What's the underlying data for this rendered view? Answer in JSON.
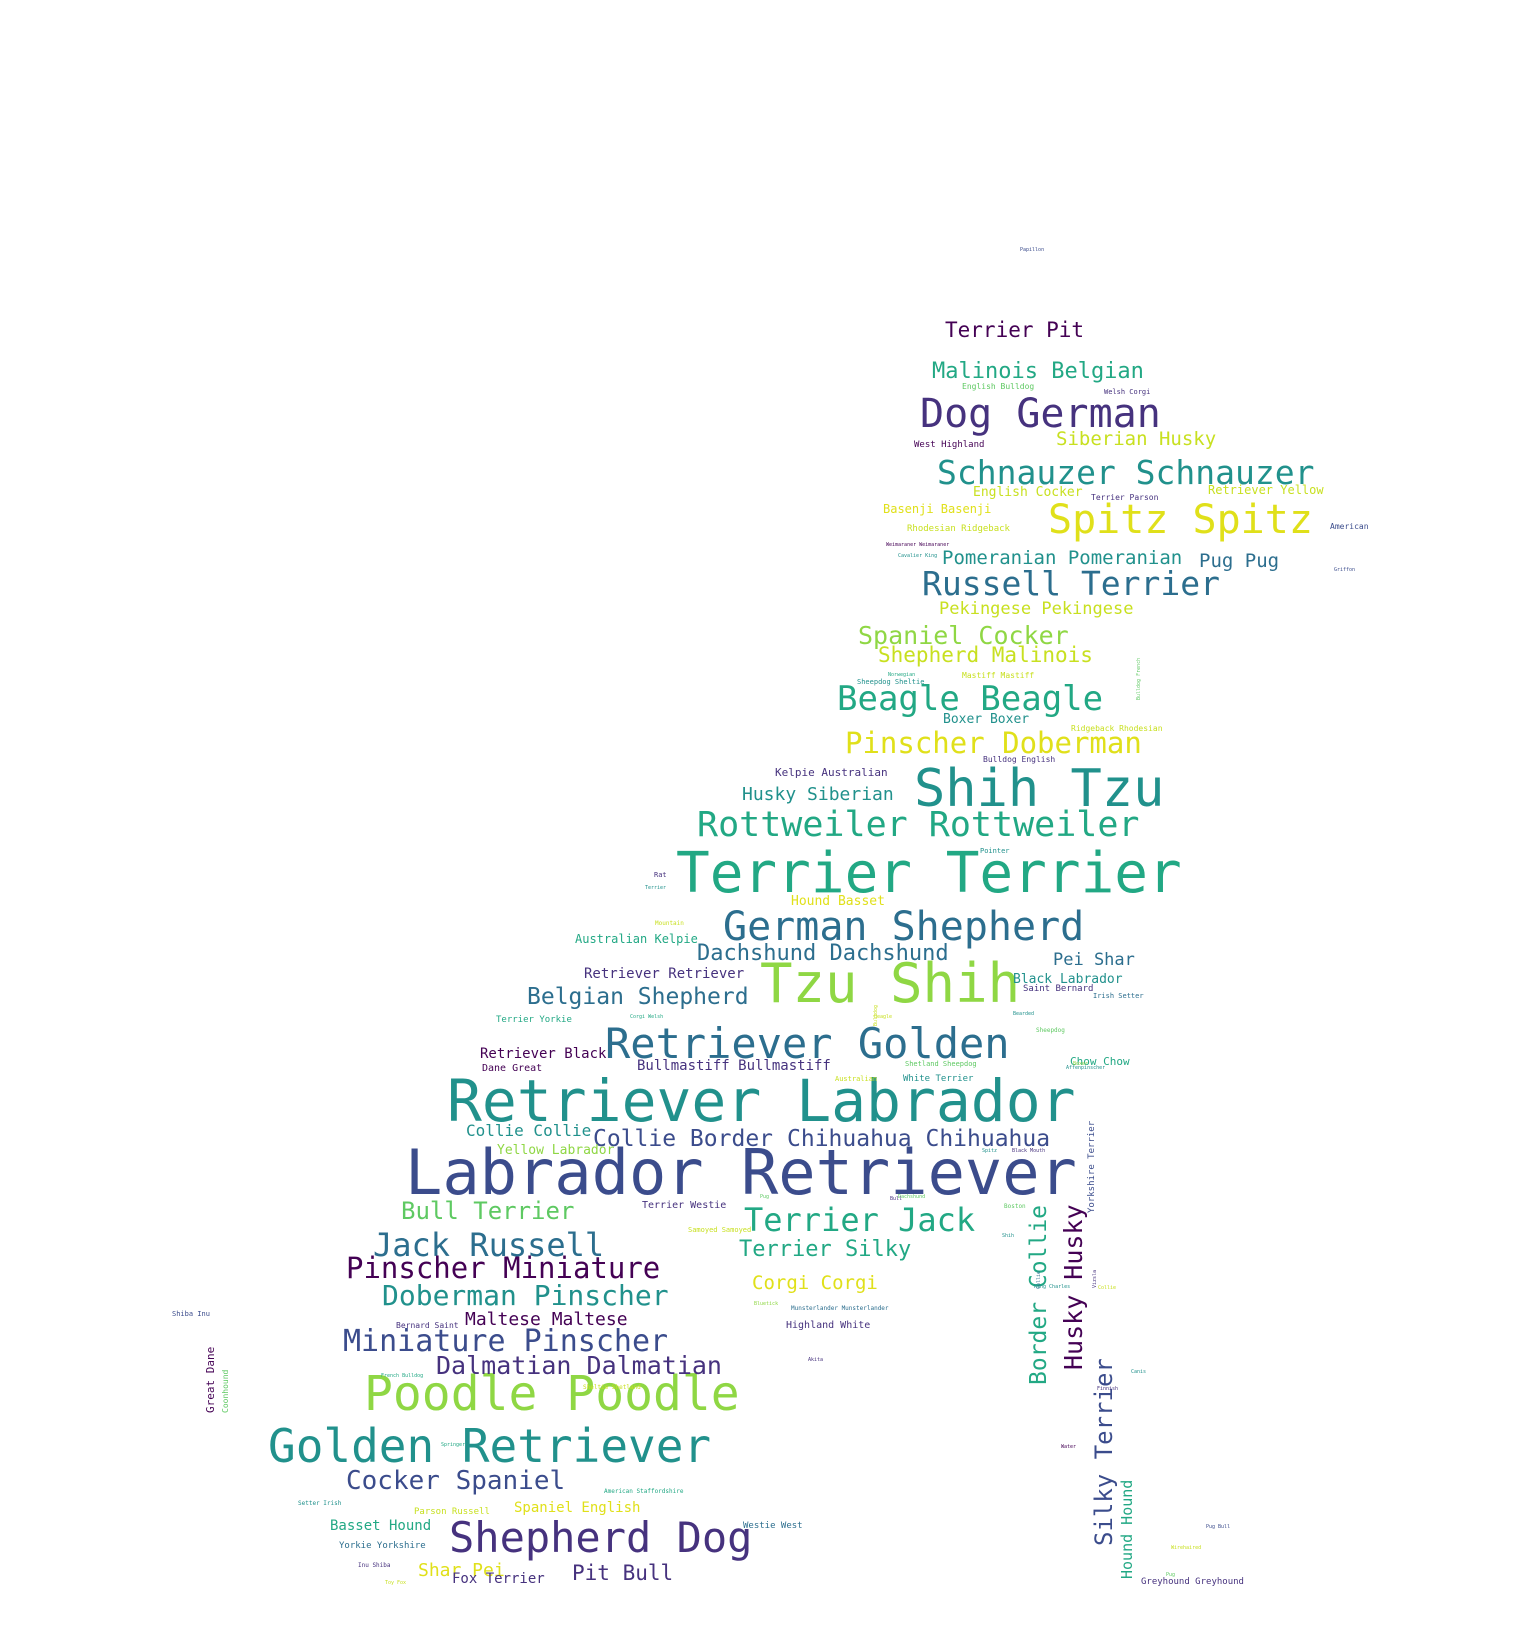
{
  "palette": {
    "dark_purple": "#440154",
    "indigo": "#3b4c8c",
    "slate_blue": "#46327e",
    "steel_blue": "#2c6e8e",
    "teal": "#21918c",
    "green_teal": "#22a884",
    "green": "#5ec962",
    "lime": "#8fd744",
    "yellow": "#c8e020",
    "bright_yellow": "#e0e01a"
  },
  "words": [
    {
      "text": "Labrador Retriever",
      "color": "indigo"
    },
    {
      "text": "Retriever Labrador",
      "color": "teal"
    },
    {
      "text": "Terrier Terrier",
      "color": "green_teal"
    },
    {
      "text": "Tzu Shih",
      "color": "lime"
    },
    {
      "text": "Shih Tzu",
      "color": "teal"
    },
    {
      "text": "Golden Retriever",
      "color": "teal"
    },
    {
      "text": "Poodle Poodle",
      "color": "lime"
    },
    {
      "text": "Retriever Golden",
      "color": "steel_blue"
    },
    {
      "text": "Shepherd Dog",
      "color": "slate_blue"
    },
    {
      "text": "German Shepherd",
      "color": "steel_blue"
    },
    {
      "text": "Dog German",
      "color": "slate_blue"
    },
    {
      "text": "Spitz Spitz",
      "color": "bright_yellow"
    },
    {
      "text": "Rottweiler Rottweiler",
      "color": "green_teal"
    },
    {
      "text": "Schnauzer Schnauzer",
      "color": "teal"
    },
    {
      "text": "Russell Terrier",
      "color": "steel_blue"
    },
    {
      "text": "Beagle Beagle",
      "color": "green_teal"
    },
    {
      "text": "Terrier Jack",
      "color": "green_teal"
    },
    {
      "text": "Jack Russell",
      "color": "steel_blue"
    },
    {
      "text": "Pinscher Doberman",
      "color": "bright_yellow"
    },
    {
      "text": "Miniature Pinscher",
      "color": "indigo"
    },
    {
      "text": "Pinscher Miniature",
      "color": "dark_purple"
    },
    {
      "text": "Doberman Pinscher",
      "color": "teal"
    },
    {
      "text": "Husky Husky",
      "color": "dark_purple"
    },
    {
      "text": "Dalmatian Dalmatian",
      "color": "slate_blue"
    },
    {
      "text": "Collie Border",
      "color": "indigo"
    },
    {
      "text": "Chihuahua Chihuahua",
      "color": "indigo"
    },
    {
      "text": "Belgian Shepherd",
      "color": "steel_blue"
    },
    {
      "text": "Cocker Spaniel",
      "color": "indigo"
    },
    {
      "text": "Border Collie",
      "color": "green_teal"
    },
    {
      "text": "Silky Terrier",
      "color": "indigo"
    },
    {
      "text": "Dachshund Dachshund",
      "color": "steel_blue"
    },
    {
      "text": "Bull Terrier",
      "color": "green"
    },
    {
      "text": "Spaniel Cocker",
      "color": "lime"
    },
    {
      "text": "Malinois Belgian",
      "color": "green_teal"
    },
    {
      "text": "Terrier Silky",
      "color": "green_teal"
    },
    {
      "text": "Shepherd Malinois",
      "color": "yellow"
    },
    {
      "text": "Terrier Pit",
      "color": "dark_purple"
    },
    {
      "text": "Pomeranian Pomeranian",
      "color": "teal"
    },
    {
      "text": "Siberian Husky",
      "color": "yellow"
    },
    {
      "text": "Husky Siberian",
      "color": "teal"
    },
    {
      "text": "Corgi Corgi",
      "color": "bright_yellow"
    },
    {
      "text": "Pit Bull",
      "color": "slate_blue"
    },
    {
      "text": "Pekingese Pekingese",
      "color": "yellow"
    },
    {
      "text": "Maltese Maltese",
      "color": "dark_purple"
    },
    {
      "text": "Pug Pug",
      "color": "steel_blue"
    },
    {
      "text": "Shar Pei",
      "color": "bright_yellow"
    },
    {
      "text": "Hound Hound",
      "color": "green_teal"
    },
    {
      "text": "Collie Collie",
      "color": "teal"
    },
    {
      "text": "Pei Shar",
      "color": "steel_blue"
    },
    {
      "text": "Retriever Retriever",
      "color": "slate_blue"
    },
    {
      "text": "Bullmastiff Bullmastiff",
      "color": "slate_blue"
    },
    {
      "text": "Retriever Black",
      "color": "dark_purple"
    },
    {
      "text": "Black Labrador",
      "color": "teal"
    },
    {
      "text": "Boxer Boxer",
      "color": "teal"
    },
    {
      "text": "Basset Hound",
      "color": "green_teal"
    },
    {
      "text": "Spaniel English",
      "color": "bright_yellow"
    },
    {
      "text": "Yellow Labrador",
      "color": "lime"
    },
    {
      "text": "Fox Terrier",
      "color": "slate_blue"
    },
    {
      "text": "Hound Basset",
      "color": "bright_yellow"
    },
    {
      "text": "Australian Kelpie",
      "color": "green_teal"
    },
    {
      "text": "Kelpie Australian",
      "color": "slate_blue"
    },
    {
      "text": "Chow Chow",
      "color": "green_teal"
    },
    {
      "text": "English Cocker",
      "color": "yellow"
    },
    {
      "text": "Retriever Yellow",
      "color": "yellow"
    },
    {
      "text": "Basenji Basenji",
      "color": "bright_yellow"
    },
    {
      "text": "Great Dane",
      "color": "dark_purple"
    },
    {
      "text": "Highland White",
      "color": "slate_blue"
    },
    {
      "text": "Dane Great",
      "color": "dark_purple"
    },
    {
      "text": "Terrier Westie",
      "color": "slate_blue"
    },
    {
      "text": "West Highland",
      "color": "dark_purple"
    },
    {
      "text": "Rhodesian Ridgeback",
      "color": "yellow"
    },
    {
      "text": "Saint Bernard",
      "color": "slate_blue"
    },
    {
      "text": "Terrier Yorkie",
      "color": "green_teal"
    },
    {
      "text": "Yorkie Yorkshire",
      "color": "steel_blue"
    },
    {
      "text": "Westie West",
      "color": "steel_blue"
    },
    {
      "text": "Parson Russell",
      "color": "yellow"
    },
    {
      "text": "Greyhound Greyhound",
      "color": "slate_blue"
    },
    {
      "text": "Coonhound",
      "color": "green"
    },
    {
      "text": "White Terrier",
      "color": "teal"
    },
    {
      "text": "Yorkshire Terrier",
      "color": "indigo"
    },
    {
      "text": "Bulldog English",
      "color": "slate_blue"
    },
    {
      "text": "English Bulldog",
      "color": "green"
    },
    {
      "text": "Terrier Parson",
      "color": "slate_blue"
    },
    {
      "text": "Ridgeback Rhodesian",
      "color": "yellow"
    },
    {
      "text": "Mastiff Mastiff",
      "color": "yellow"
    },
    {
      "text": "Shetland Sheepdog",
      "color": "green"
    },
    {
      "text": "Irish Setter",
      "color": "steel_blue"
    },
    {
      "text": "Bernard Saint",
      "color": "slate_blue"
    },
    {
      "text": "Sheepdog Sheltie",
      "color": "teal"
    },
    {
      "text": "Welsh Corgi",
      "color": "slate_blue"
    },
    {
      "text": "American",
      "color": "indigo"
    },
    {
      "text": "Pointer",
      "color": "teal"
    },
    {
      "text": "Shiba Inu",
      "color": "indigo"
    },
    {
      "text": "Samoyed Samoyed",
      "color": "yellow"
    },
    {
      "text": "Sheltie Shetland",
      "color": "yellow"
    },
    {
      "text": "Munsterlander Munsterlander",
      "color": "steel_blue"
    },
    {
      "text": "American Staffordshire",
      "color": "green_teal"
    },
    {
      "text": "Inu Shiba",
      "color": "slate_blue"
    },
    {
      "text": "Sheepdog",
      "color": "green"
    },
    {
      "text": "Corgi Welsh",
      "color": "green_teal"
    },
    {
      "text": "Australian",
      "color": "yellow"
    },
    {
      "text": "Boston",
      "color": "green"
    },
    {
      "text": "Mountain",
      "color": "yellow"
    },
    {
      "text": "Setter Irish",
      "color": "teal"
    },
    {
      "text": "Weimaraner Weimaraner",
      "color": "dark_purple"
    },
    {
      "text": "Cavalier King",
      "color": "teal"
    },
    {
      "text": "French Bulldog",
      "color": "green_teal"
    },
    {
      "text": "Rat",
      "color": "slate_blue"
    },
    {
      "text": "Toy Fox",
      "color": "yellow"
    },
    {
      "text": "Terrier",
      "color": "teal"
    },
    {
      "text": "King Charles",
      "color": "teal"
    },
    {
      "text": "Springer",
      "color": "green_teal"
    },
    {
      "text": "Affenpinscher",
      "color": "teal"
    },
    {
      "text": "Norwegian",
      "color": "green_teal"
    },
    {
      "text": "Bearded",
      "color": "teal"
    },
    {
      "text": "Papillon",
      "color": "indigo"
    },
    {
      "text": "Griffon",
      "color": "indigo"
    },
    {
      "text": "Bulldog French",
      "color": "green"
    },
    {
      "text": "Boxer",
      "color": "lime"
    },
    {
      "text": "Collie",
      "color": "steel_blue"
    },
    {
      "text": "Black Mouth",
      "color": "slate_blue"
    },
    {
      "text": "Water",
      "color": "dark_purple"
    },
    {
      "text": "Bluetick",
      "color": "lime"
    },
    {
      "text": "Wirehaired",
      "color": "yellow"
    },
    {
      "text": "Finnish",
      "color": "slate_blue"
    },
    {
      "text": "Collie",
      "color": "yellow"
    },
    {
      "text": "Dachshund",
      "color": "green"
    },
    {
      "text": "Beagle",
      "color": "yellow"
    },
    {
      "text": "Shih",
      "color": "teal"
    },
    {
      "text": "Vizsla",
      "color": "slate_blue"
    },
    {
      "text": "Akita",
      "color": "slate_blue"
    },
    {
      "text": "Spitz",
      "color": "teal"
    },
    {
      "text": "Pug Bull",
      "color": "indigo"
    },
    {
      "text": "Pug",
      "color": "green"
    },
    {
      "text": "Bull",
      "color": "slate_blue"
    },
    {
      "text": "Pug",
      "color": "green"
    },
    {
      "text": "Bulldog",
      "color": "yellow"
    },
    {
      "text": "Canis",
      "color": "teal"
    },
    {
      "text": "Brittany",
      "color": "lime"
    }
  ]
}
